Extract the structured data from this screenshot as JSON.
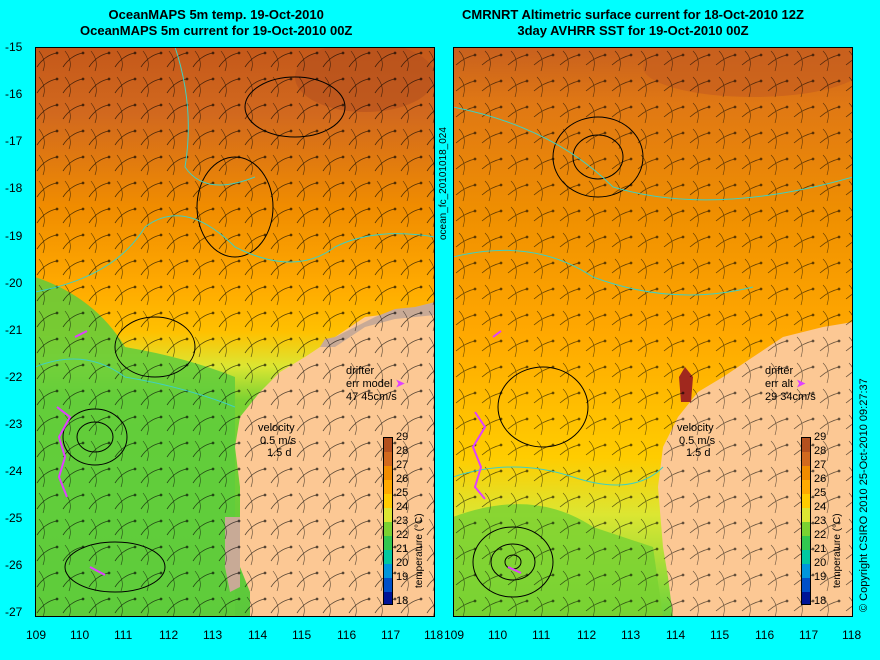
{
  "panels": [
    {
      "id": "left",
      "title_line1": "OceanMAPS 5m temp. 19-Oct-2010",
      "title_line2": "OceanMAPS 5m current for 19-Oct-2010 00Z",
      "drifter_label": "drifter",
      "err_label": "err model",
      "err_values": "47 45cm/s",
      "velocity_label": "velocity",
      "velocity_scale": "0.5 m/s",
      "velocity_time": "1.5 d"
    },
    {
      "id": "right",
      "title_line1": "CMRNRT Altimetric surface current for 18-Oct-2010 12Z",
      "title_line2": "3day AVHRR SST for 19-Oct-2010 00Z",
      "drifter_label": "drifter",
      "err_label": "err alt",
      "err_values": "29 34cm/s",
      "velocity_label": "velocity",
      "velocity_scale": "0.5 m/s",
      "velocity_time": "1.5 d"
    }
  ],
  "axes": {
    "lon_ticks": [
      "109",
      "110",
      "111",
      "112",
      "113",
      "114",
      "115",
      "116",
      "117",
      "118"
    ],
    "lat_ticks": [
      "-15",
      "-16",
      "-17",
      "-18",
      "-19",
      "-20",
      "-21",
      "-22",
      "-23",
      "-24",
      "-25",
      "-26",
      "-27"
    ]
  },
  "colorbar": {
    "label": "temperature (°C)",
    "ticks": [
      "29",
      "28",
      "27",
      "26",
      "25",
      "24",
      "23",
      "22",
      "21",
      "20",
      "19",
      "18"
    ],
    "colors": [
      "#b4501e",
      "#d2691e",
      "#f08c00",
      "#ffaa00",
      "#ffcc00",
      "#dce632",
      "#7ad232",
      "#32c850",
      "#00c8a0",
      "#0096dc",
      "#0050c8",
      "#001496"
    ]
  },
  "side_id": "ocean_fc_20101018_024",
  "copyright": "© Copyright CSIRO 2010   25-Oct-2010 09:27:37"
}
